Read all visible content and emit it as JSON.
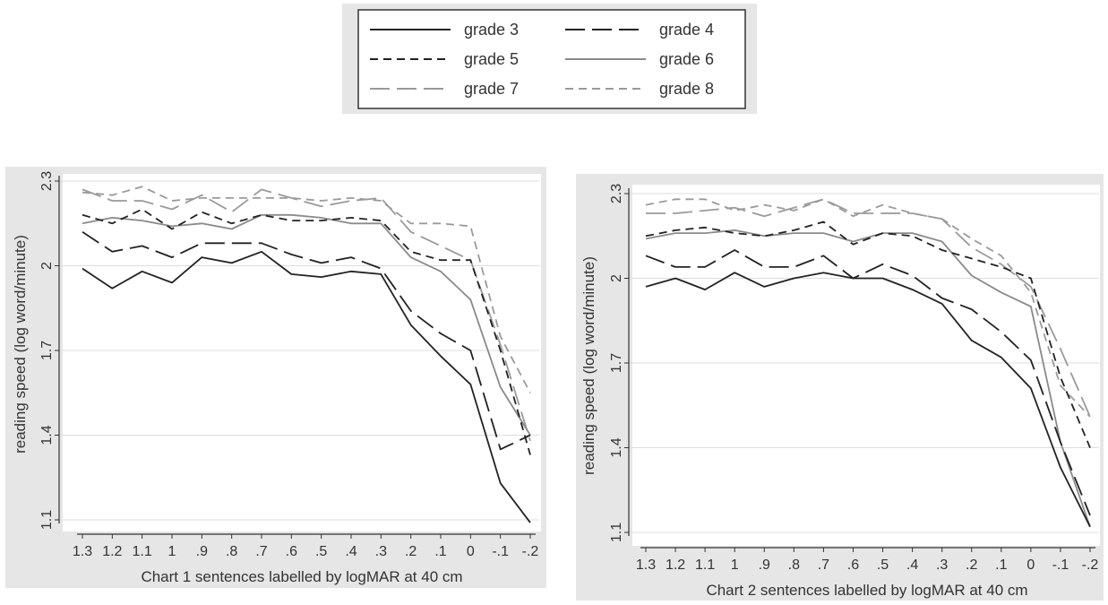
{
  "legend": [
    {
      "label": "grade 3",
      "dash": "none",
      "color": "#222222"
    },
    {
      "label": "grade 4",
      "dash": "22,8",
      "color": "#222222"
    },
    {
      "label": "grade 5",
      "dash": "9,6",
      "color": "#222222"
    },
    {
      "label": "grade 6",
      "dash": "none",
      "color": "#8a8a8a"
    },
    {
      "label": "grade 7",
      "dash": "22,8",
      "color": "#9a9a9a"
    },
    {
      "label": "grade 8",
      "dash": "9,6",
      "color": "#9a9a9a"
    }
  ],
  "chart_data": [
    {
      "type": "line",
      "xlabel": "Chart 1 sentences labelled by logMAR at 40 cm",
      "ylabel": "reading speed (log word/minute)",
      "x": [
        "1.3",
        "1.2",
        "1.1",
        "1",
        ".9",
        ".8",
        ".7",
        ".6",
        ".5",
        ".4",
        ".3",
        ".2",
        ".1",
        "0",
        "-.1",
        "-.2"
      ],
      "yticks": [
        "1.1",
        "1.4",
        "1.7",
        "2",
        "2.3"
      ],
      "ylim": [
        1.1,
        2.3
      ],
      "grid": true,
      "series": [
        {
          "name": "grade 3",
          "values": [
            1.99,
            1.92,
            1.98,
            1.94,
            2.03,
            2.01,
            2.05,
            1.97,
            1.96,
            1.98,
            1.97,
            1.79,
            1.68,
            1.58,
            1.23,
            1.09
          ]
        },
        {
          "name": "grade 4",
          "values": [
            2.12,
            2.05,
            2.07,
            2.03,
            2.08,
            2.08,
            2.08,
            2.04,
            2.01,
            2.03,
            1.99,
            1.84,
            1.76,
            1.7,
            1.35,
            1.4
          ]
        },
        {
          "name": "grade 5",
          "values": [
            2.18,
            2.15,
            2.2,
            2.13,
            2.19,
            2.15,
            2.18,
            2.16,
            2.16,
            2.17,
            2.16,
            2.05,
            2.02,
            2.02,
            1.7,
            1.33
          ]
        },
        {
          "name": "grade 6",
          "values": [
            2.15,
            2.17,
            2.16,
            2.14,
            2.15,
            2.13,
            2.18,
            2.18,
            2.17,
            2.15,
            2.15,
            2.03,
            1.98,
            1.88,
            1.57,
            1.4
          ]
        },
        {
          "name": "grade 7",
          "values": [
            2.27,
            2.23,
            2.23,
            2.2,
            2.25,
            2.19,
            2.27,
            2.24,
            2.21,
            2.23,
            2.24,
            2.12,
            2.07,
            2.02,
            1.72,
            1.38
          ]
        },
        {
          "name": "grade 8",
          "values": [
            2.26,
            2.25,
            2.28,
            2.23,
            2.24,
            2.24,
            2.24,
            2.24,
            2.23,
            2.24,
            2.23,
            2.15,
            2.15,
            2.14,
            1.75,
            1.55
          ]
        }
      ]
    },
    {
      "type": "line",
      "xlabel": "Chart 2 sentences labelled by logMAR at 40 cm",
      "ylabel": "reading speed (log word/minute)",
      "x": [
        "1.3",
        "1.2",
        "1.1",
        "1",
        ".9",
        ".8",
        ".7",
        ".6",
        ".5",
        ".4",
        ".3",
        ".2",
        ".1",
        "0",
        "-.1",
        "-.2"
      ],
      "yticks": [
        "1.1",
        "1.4",
        "1.7",
        "2",
        "2.3"
      ],
      "ylim": [
        1.1,
        2.3
      ],
      "grid": true,
      "series": [
        {
          "name": "grade 3",
          "values": [
            1.97,
            2.0,
            1.96,
            2.02,
            1.97,
            2.0,
            2.02,
            2.0,
            2.0,
            1.96,
            1.91,
            1.78,
            1.72,
            1.61,
            1.33,
            1.12
          ]
        },
        {
          "name": "grade 4",
          "values": [
            2.08,
            2.04,
            2.04,
            2.1,
            2.04,
            2.04,
            2.08,
            2.0,
            2.05,
            2.01,
            1.93,
            1.89,
            1.81,
            1.71,
            1.42,
            1.16
          ]
        },
        {
          "name": "grade 5",
          "values": [
            2.15,
            2.17,
            2.18,
            2.16,
            2.15,
            2.17,
            2.2,
            2.12,
            2.16,
            2.15,
            2.1,
            2.07,
            2.04,
            2.0,
            1.65,
            1.4
          ]
        },
        {
          "name": "grade 6",
          "values": [
            2.14,
            2.16,
            2.16,
            2.17,
            2.15,
            2.16,
            2.16,
            2.13,
            2.16,
            2.16,
            2.13,
            2.01,
            1.95,
            1.9,
            1.42,
            1.12
          ]
        },
        {
          "name": "grade 7",
          "values": [
            2.23,
            2.23,
            2.24,
            2.25,
            2.22,
            2.25,
            2.28,
            2.23,
            2.23,
            2.23,
            2.21,
            2.11,
            2.05,
            1.97,
            1.75,
            1.51
          ]
        },
        {
          "name": "grade 8",
          "values": [
            2.26,
            2.28,
            2.28,
            2.24,
            2.26,
            2.24,
            2.28,
            2.22,
            2.26,
            2.23,
            2.21,
            2.14,
            2.08,
            1.95,
            1.62,
            1.51
          ]
        }
      ]
    }
  ]
}
